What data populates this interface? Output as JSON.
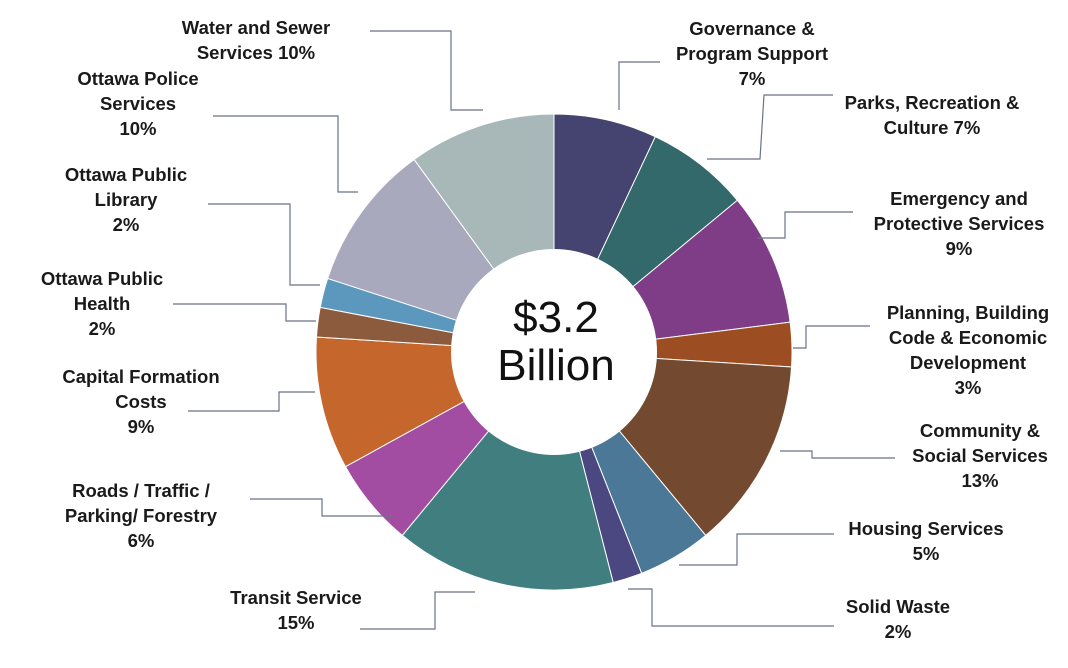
{
  "chart_data": {
    "type": "pie",
    "variant": "donut",
    "center_label": [
      "$3.2",
      "Billion"
    ],
    "legend": "none",
    "slices": [
      {
        "name": "Governance & Program Support",
        "label_lines": [
          "Governance &",
          "Program Support",
          "7%"
        ],
        "value": 7,
        "color": "#454470"
      },
      {
        "name": "Parks, Recreation & Culture",
        "label_lines": [
          "Parks, Recreation &",
          "Culture 7%"
        ],
        "value": 7,
        "color": "#33696a"
      },
      {
        "name": "Emergency and Protective Services",
        "label_lines": [
          "Emergency and",
          "Protective Services",
          "9%"
        ],
        "value": 9,
        "color": "#7e3d86"
      },
      {
        "name": "Planning, Building Code & Economic Development",
        "label_lines": [
          "Planning, Building",
          "Code & Economic",
          "Development",
          "3%"
        ],
        "value": 3,
        "color": "#9c4e22"
      },
      {
        "name": "Community & Social Services",
        "label_lines": [
          "Community &",
          "Social Services",
          "13%"
        ],
        "value": 13,
        "color": "#734a2f"
      },
      {
        "name": "Housing Services",
        "label_lines": [
          "Housing Services",
          "5%"
        ],
        "value": 5,
        "color": "#4b7896"
      },
      {
        "name": "Solid Waste",
        "label_lines": [
          "Solid Waste",
          "2%"
        ],
        "value": 2,
        "color": "#4b4781"
      },
      {
        "name": "Transit Service",
        "label_lines": [
          "Transit Service",
          "15%"
        ],
        "value": 15,
        "color": "#407e80"
      },
      {
        "name": "Roads / Traffic / Parking/ Forestry",
        "label_lines": [
          "Roads / Traffic /",
          "Parking/ Forestry",
          "6%"
        ],
        "value": 6,
        "color": "#a24ca2"
      },
      {
        "name": "Capital Formation Costs",
        "label_lines": [
          "Capital Formation",
          "Costs",
          "9%"
        ],
        "value": 9,
        "color": "#c5662c"
      },
      {
        "name": "Ottawa Public Health",
        "label_lines": [
          "Ottawa Public",
          "Health",
          "2%"
        ],
        "value": 2,
        "color": "#8c5a3c"
      },
      {
        "name": "Ottawa Public Library",
        "label_lines": [
          "Ottawa Public",
          "Library",
          "2%"
        ],
        "value": 2,
        "color": "#5c98bd"
      },
      {
        "name": "Ottawa Police Services",
        "label_lines": [
          "Ottawa Police",
          "Services",
          "10%"
        ],
        "value": 10,
        "color": "#a8a9bc"
      },
      {
        "name": "Water and Sewer Services",
        "label_lines": [
          "Water and Sewer",
          "Services 10%"
        ],
        "value": 10,
        "color": "#a8b8b9"
      }
    ]
  }
}
